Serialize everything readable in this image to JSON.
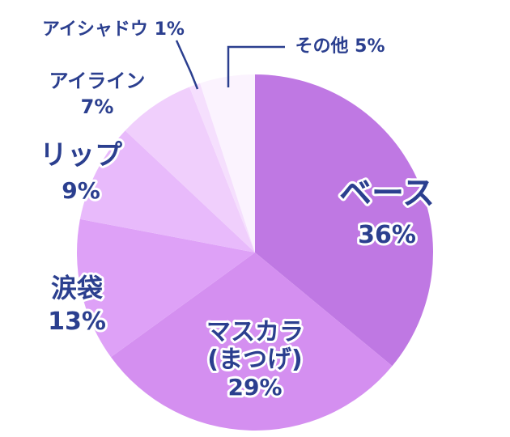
{
  "chart_data": {
    "type": "pie",
    "start_angle_deg": 0,
    "direction": "clockwise",
    "slices": [
      {
        "label": "ベース",
        "value_text": "36%",
        "value": 36,
        "color": "#bf78e3"
      },
      {
        "label": "マスカラ\n(まつげ)",
        "value_text": "29%",
        "value": 29,
        "color": "#d48ff0"
      },
      {
        "label": "涙袋",
        "value_text": "13%",
        "value": 13,
        "color": "#dea1f7"
      },
      {
        "label": "リップ",
        "value_text": "9%",
        "value": 9,
        "color": "#e8bafb"
      },
      {
        "label": "アイライン",
        "value_text": "7%",
        "value": 7,
        "color": "#f0cffc"
      },
      {
        "label": "アイシャドウ",
        "value_text": "1%",
        "value": 1,
        "color": "#f5dffd"
      },
      {
        "label": "その他",
        "value_text": "5%",
        "value": 5,
        "color": "#fbf3fe"
      }
    ],
    "legend": "none",
    "label_color": "#2b3f8f"
  }
}
